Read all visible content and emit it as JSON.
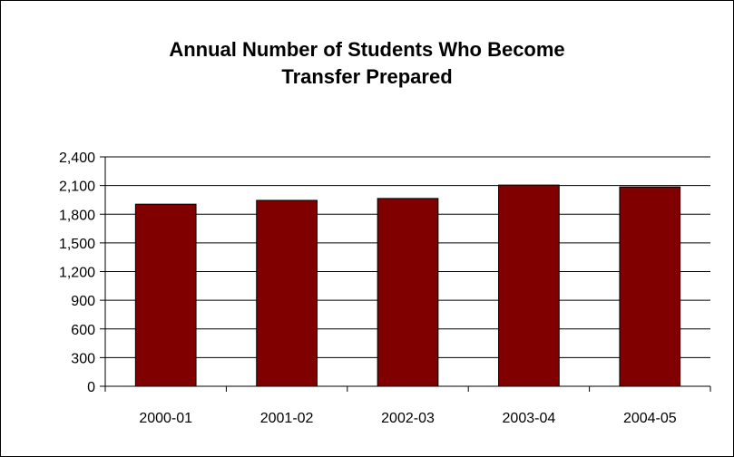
{
  "chart_data": {
    "type": "bar",
    "title": "Annual Number of Students Who Become\nTransfer Prepared",
    "categories": [
      "2000-01",
      "2001-02",
      "2002-03",
      "2003-04",
      "2004-05"
    ],
    "values": [
      1905,
      1945,
      1965,
      2105,
      2085
    ],
    "ylim": [
      0,
      2400
    ],
    "yticks": [
      0,
      300,
      600,
      900,
      1200,
      1500,
      1800,
      2100,
      2400
    ],
    "ytick_labels": [
      "0",
      "300",
      "600",
      "900",
      "1,200",
      "1,500",
      "1,800",
      "2,100",
      "2,400"
    ],
    "xlabel": "",
    "ylabel": "",
    "grid": true,
    "legend": "none",
    "bar_color": "#800000"
  }
}
